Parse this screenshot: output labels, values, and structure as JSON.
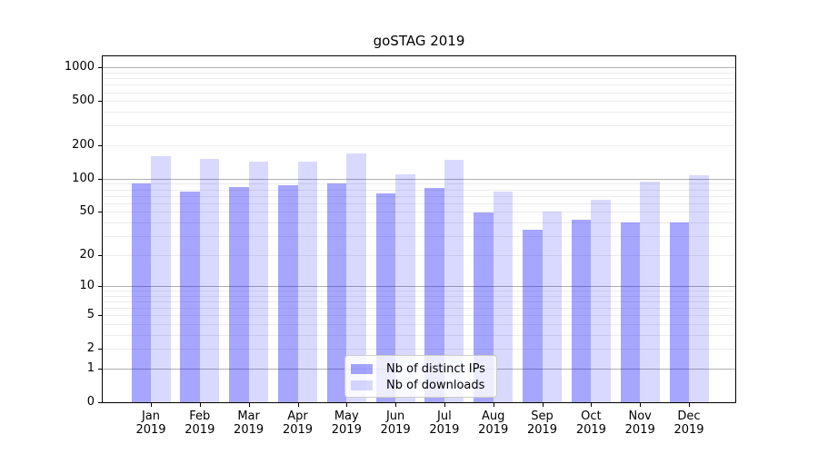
{
  "chart_data": {
    "type": "bar",
    "title": "goSTAG 2019",
    "categories": [
      "Jan 2019",
      "Feb 2019",
      "Mar 2019",
      "Apr 2019",
      "May 2019",
      "Jun 2019",
      "Jul 2019",
      "Aug 2019",
      "Sep 2019",
      "Oct 2019",
      "Nov 2019",
      "Dec 2019"
    ],
    "series": [
      {
        "name": "Nb of distinct IPs",
        "color": "rgba(0,0,255,0.35)",
        "values": [
          90,
          76,
          84,
          87,
          90,
          74,
          83,
          49,
          34,
          42,
          40,
          40
        ]
      },
      {
        "name": "Nb of downloads",
        "color": "rgba(0,0,255,0.15)",
        "values": [
          160,
          152,
          143,
          143,
          170,
          110,
          148,
          77,
          50,
          64,
          94,
          108
        ]
      }
    ],
    "y_scale": "log1p",
    "ylim": [
      0,
      1260
    ],
    "y_ticks": [
      1000,
      500,
      200,
      100,
      50,
      20,
      10,
      5,
      2,
      1,
      0
    ],
    "grid": "major-and-minor",
    "legend_position": "lower center",
    "colors": {
      "grid_major": "#b0b0b0",
      "grid_minor": "#ececec",
      "axis": "#000000",
      "bar_dark": "rgba(0,0,255,0.35)",
      "bar_light": "rgba(0,0,255,0.15)"
    }
  }
}
